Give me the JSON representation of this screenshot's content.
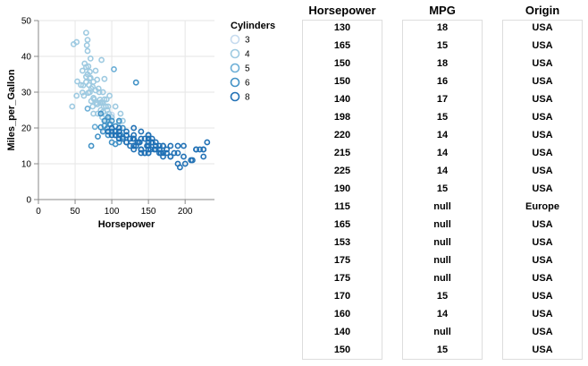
{
  "chart_data": [
    {
      "type": "scatter",
      "title": "",
      "xlabel": "Horsepower",
      "ylabel": "Miles_per_Gallon",
      "xlim": [
        0,
        240
      ],
      "ylim": [
        0,
        50
      ],
      "x_ticks": [
        "0",
        "50",
        "100",
        "150",
        "200"
      ],
      "y_ticks": [
        "0",
        "10",
        "20",
        "30",
        "40",
        "50"
      ],
      "grid": true,
      "marker": "open-circle",
      "legend": {
        "title": "Cylinders",
        "placement": "right",
        "entries": [
          "3",
          "4",
          "5",
          "6",
          "8"
        ],
        "colors": [
          "#c6dbef",
          "#9ecae1",
          "#6baed6",
          "#4292c6",
          "#2171b5"
        ]
      },
      "series": [
        {
          "name": "3",
          "color": "#c6dbef",
          "x": [
            90,
            97,
            110,
            100
          ],
          "y": [
            19,
            20,
            18,
            23.7
          ]
        },
        {
          "name": "4",
          "color": "#9ecae1",
          "x": [
            46,
            48,
            52,
            52,
            53,
            58,
            60,
            62,
            65,
            65,
            65,
            66,
            67,
            67,
            68,
            68,
            69,
            70,
            70,
            71,
            71,
            72,
            74,
            75,
            75,
            76,
            78,
            78,
            79,
            80,
            80,
            81,
            82,
            83,
            84,
            85,
            86,
            86,
            87,
            88,
            88,
            89,
            90,
            90,
            92,
            92,
            93,
            94,
            95,
            95,
            96,
            97,
            98,
            100,
            105,
            110,
            112,
            115,
            67,
            63,
            70,
            61,
            72,
            84,
            88,
            92,
            74,
            65,
            60,
            75
          ],
          "y": [
            26,
            43.4,
            44,
            29,
            33,
            32,
            36,
            29,
            46.6,
            32.8,
            37,
            43.1,
            44.6,
            35,
            37.2,
            29.8,
            32,
            30,
            33.8,
            34,
            39.4,
            31,
            26,
            32.9,
            24,
            28,
            30.5,
            36,
            27,
            26.6,
            33.5,
            24,
            31,
            30,
            27,
            25,
            39,
            27.2,
            23,
            27,
            24.5,
            26,
            28,
            33.7,
            26,
            22,
            28,
            25,
            26,
            22,
            24,
            29,
            21,
            23,
            26,
            21.6,
            24,
            22,
            41.5,
            38,
            35.7,
            31.9,
            27.5,
            27.9,
            30,
            23.5,
            31.5,
            34.3,
            29.9,
            28.4
          ]
        },
        {
          "name": "5",
          "color": "#6baed6",
          "x": [
            67,
            77,
            103
          ],
          "y": [
            25.4,
            20.3,
            36.4
          ]
        },
        {
          "name": "6",
          "color": "#4292c6",
          "x": [
            85,
            88,
            90,
            95,
            97,
            100,
            100,
            105,
            105,
            110,
            110,
            110,
            115,
            120,
            125,
            133,
            72,
            81,
            90,
            94,
            98,
            100,
            105,
            110,
            112,
            115,
            85,
            95,
            100,
            105
          ],
          "y": [
            20.2,
            19,
            22,
            18,
            21,
            18,
            16,
            19,
            20.5,
            16,
            19,
            22,
            17.5,
            18,
            17,
            32.7,
            15,
            17.6,
            20.6,
            20,
            21,
            19,
            18,
            17,
            18.1,
            20,
            24,
            23,
            22,
            15.5
          ]
        },
        {
          "name": "8",
          "color": "#2171b5",
          "x": [
            130,
            165,
            150,
            150,
            140,
            198,
            220,
            215,
            225,
            190,
            170,
            160,
            150,
            225,
            215,
            225,
            190,
            210,
            193,
            200,
            230,
            180,
            175,
            170,
            150,
            145,
            140,
            150,
            130,
            135,
            175,
            165,
            158,
            150,
            160,
            110,
            120,
            129,
            138,
            150,
            155,
            180,
            185,
            190,
            198,
            208,
            150,
            140,
            133,
            125,
            145,
            155,
            160,
            150,
            140,
            130,
            167,
            170,
            145,
            150,
            153,
            148,
            137,
            155,
            165,
            170,
            180,
            110,
            105,
            105,
            115,
            120,
            125,
            130,
            140,
            150,
            160,
            95,
            100,
            110,
            120,
            130,
            140,
            150,
            100,
            110,
            120,
            130
          ],
          "y": [
            18,
            15,
            18,
            16,
            17,
            15,
            14,
            14,
            14,
            15,
            15,
            14,
            15,
            14,
            14,
            12,
            13,
            11,
            9,
            10,
            16,
            12,
            13,
            13,
            14,
            13,
            14,
            15,
            15,
            16,
            14,
            13,
            14,
            17,
            15,
            18,
            19,
            17,
            16,
            15,
            16,
            12,
            13,
            10,
            12,
            11,
            18,
            14,
            15,
            17,
            13,
            16,
            16,
            18,
            19,
            20,
            13,
            15,
            17,
            13,
            14,
            15,
            16,
            17,
            14,
            12,
            15,
            20,
            19,
            18,
            17,
            16,
            15,
            14,
            13,
            16,
            15,
            19,
            18,
            17,
            16,
            15,
            14,
            13,
            20,
            19,
            18,
            17
          ]
        }
      ]
    },
    {
      "type": "table",
      "columns": [
        "Horsepower",
        "MPG",
        "Origin"
      ],
      "rows": [
        [
          "130",
          "18",
          "USA"
        ],
        [
          "165",
          "15",
          "USA"
        ],
        [
          "150",
          "18",
          "USA"
        ],
        [
          "150",
          "16",
          "USA"
        ],
        [
          "140",
          "17",
          "USA"
        ],
        [
          "198",
          "15",
          "USA"
        ],
        [
          "220",
          "14",
          "USA"
        ],
        [
          "215",
          "14",
          "USA"
        ],
        [
          "225",
          "14",
          "USA"
        ],
        [
          "190",
          "15",
          "USA"
        ],
        [
          "115",
          "null",
          "Europe"
        ],
        [
          "165",
          "null",
          "USA"
        ],
        [
          "153",
          "null",
          "USA"
        ],
        [
          "175",
          "null",
          "USA"
        ],
        [
          "175",
          "null",
          "USA"
        ],
        [
          "170",
          "15",
          "USA"
        ],
        [
          "160",
          "14",
          "USA"
        ],
        [
          "140",
          "null",
          "USA"
        ],
        [
          "150",
          "15",
          "USA"
        ]
      ]
    }
  ]
}
